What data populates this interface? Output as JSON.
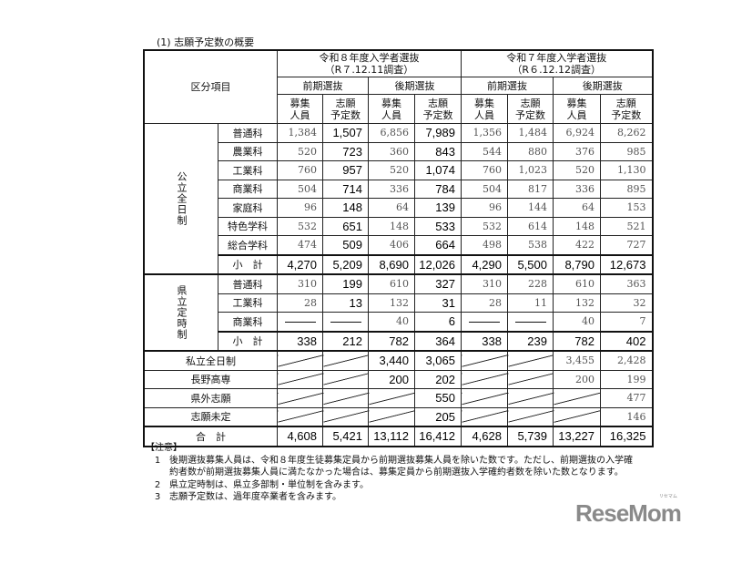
{
  "title": "(1) 志願予定数の概要",
  "header": {
    "corner": "区分項目",
    "years": [
      {
        "title": "令和８年度入学者選抜",
        "sub": "（R７.12.11調査）"
      },
      {
        "title": "令和７年度入学者選抜",
        "sub": "（R６.12.12調査）"
      }
    ],
    "phases": [
      "前期選抜",
      "後期選抜",
      "前期選抜",
      "後期選抜"
    ],
    "cols": [
      {
        "l1": "募集",
        "l2": "人員"
      },
      {
        "l1": "志願",
        "l2": "予定数"
      },
      {
        "l1": "募集",
        "l2": "人員"
      },
      {
        "l1": "志願",
        "l2": "予定数"
      },
      {
        "l1": "募集",
        "l2": "人員"
      },
      {
        "l1": "志願",
        "l2": "予定数"
      },
      {
        "l1": "募集",
        "l2": "人員"
      },
      {
        "l1": "志願",
        "l2": "予定数"
      }
    ]
  },
  "groups": [
    {
      "label": "公立全日制",
      "rows": [
        {
          "label": "普通科",
          "values": [
            "1,384",
            "1,507",
            "6,856",
            "7,989",
            "1,356",
            "1,484",
            "6,924",
            "8,262"
          ]
        },
        {
          "label": "農業科",
          "values": [
            "520",
            "723",
            "360",
            "843",
            "544",
            "880",
            "376",
            "985"
          ]
        },
        {
          "label": "工業科",
          "values": [
            "760",
            "957",
            "520",
            "1,074",
            "760",
            "1,023",
            "520",
            "1,130"
          ]
        },
        {
          "label": "商業科",
          "values": [
            "504",
            "714",
            "336",
            "784",
            "504",
            "817",
            "336",
            "895"
          ]
        },
        {
          "label": "家庭科",
          "values": [
            "96",
            "148",
            "64",
            "139",
            "96",
            "144",
            "64",
            "153"
          ]
        },
        {
          "label": "特色学科",
          "values": [
            "532",
            "651",
            "148",
            "533",
            "532",
            "614",
            "148",
            "521"
          ]
        },
        {
          "label": "総合学科",
          "values": [
            "474",
            "509",
            "406",
            "664",
            "498",
            "538",
            "422",
            "727"
          ]
        },
        {
          "label": "小　計",
          "subtotal": true,
          "values": [
            "4,270",
            "5,209",
            "8,690",
            "12,026",
            "4,290",
            "5,500",
            "8,790",
            "12,673"
          ]
        }
      ]
    },
    {
      "label": "県立定時制",
      "rows": [
        {
          "label": "普通科",
          "values": [
            "310",
            "199",
            "610",
            "327",
            "310",
            "228",
            "610",
            "363"
          ]
        },
        {
          "label": "工業科",
          "values": [
            "28",
            "13",
            "132",
            "31",
            "28",
            "11",
            "132",
            "32"
          ]
        },
        {
          "label": "商業科",
          "values": [
            "—",
            "—",
            "40",
            "6",
            "—",
            "—",
            "40",
            "7"
          ]
        },
        {
          "label": "小　計",
          "subtotal": true,
          "values": [
            "338",
            "212",
            "782",
            "364",
            "338",
            "239",
            "782",
            "402"
          ]
        }
      ]
    }
  ],
  "other_rows": [
    {
      "label": "私立全日制",
      "values": [
        null,
        null,
        "3,440",
        "3,065",
        null,
        null,
        "3,455",
        "2,428"
      ]
    },
    {
      "label": "長野高専",
      "values": [
        null,
        null,
        "200",
        "202",
        null,
        null,
        "200",
        "199"
      ]
    },
    {
      "label": "県外志願",
      "values": [
        null,
        null,
        null,
        "550",
        null,
        null,
        null,
        "477"
      ]
    },
    {
      "label": "志願未定",
      "values": [
        null,
        null,
        null,
        "205",
        null,
        null,
        null,
        "146"
      ]
    }
  ],
  "total": {
    "label": "合　計",
    "values": [
      "4,608",
      "5,421",
      "13,112",
      "16,412",
      "4,628",
      "5,739",
      "13,227",
      "16,325"
    ]
  },
  "notes": {
    "heading": "【注意】",
    "items": [
      {
        "n": "1",
        "text": "後期選抜募集人員は、令和８年度生徒募集定員から前期選抜募集人員を除いた数です。ただし、前期選抜の入学確約者数が前期選抜募集人員に満たなかった場合は、募集定員から前期選抜入学確約者数を除いた数となります。"
      },
      {
        "n": "2",
        "text": "県立定時制は、県立多部制・単位制を含みます。"
      },
      {
        "n": "3",
        "text": "志願予定数は、過年度卒業者を含みます。"
      }
    ]
  },
  "logo": {
    "text": "ReseMom",
    "ruby": "リセマム"
  }
}
